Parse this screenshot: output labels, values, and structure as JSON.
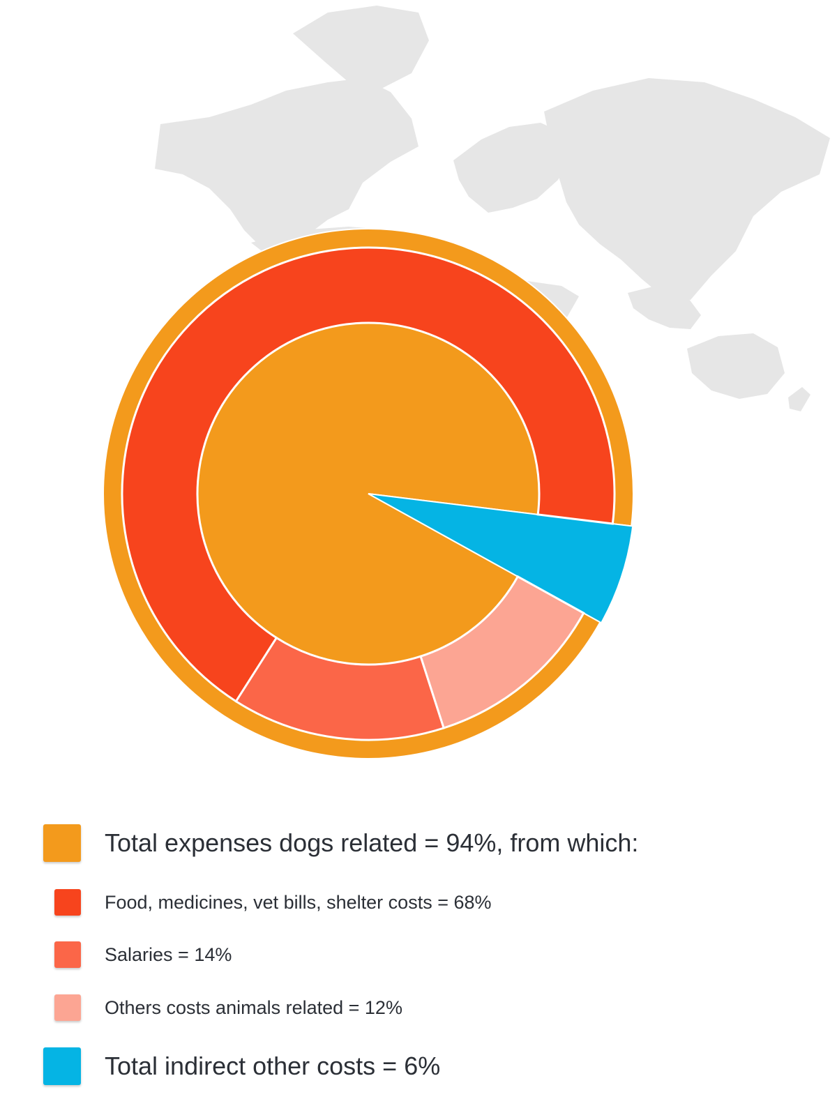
{
  "chart_data": {
    "type": "pie",
    "variant": "nested-donut",
    "outer_series": [
      {
        "label": "Total expenses dogs related",
        "value": 94,
        "color": "#F39A1C"
      },
      {
        "label": "Total indirect other costs",
        "value": 6,
        "color": "#05B4E4"
      }
    ],
    "inner_series": [
      {
        "label": "Food, medicines, vet bills, shelter costs",
        "value": 68,
        "color": "#F7441D"
      },
      {
        "label": "Salaries",
        "value": 14,
        "color": "#FB6648"
      },
      {
        "label": "Others costs animals related",
        "value": 12,
        "color": "#FCA593"
      }
    ],
    "center_color": "#F39A1C",
    "background": "world-map-silhouette",
    "map_color": "#E6E6E6"
  },
  "legend": [
    {
      "text": "Total expenses dogs related = 94%, from which:",
      "color": "#F39A1C",
      "level": "main"
    },
    {
      "text": "Food, medicines, vet bills, shelter costs = 68%",
      "color": "#F7441D",
      "level": "sub"
    },
    {
      "text": "Salaries = 14%",
      "color": "#FB6648",
      "level": "sub"
    },
    {
      "text": "Others costs animals related = 12%",
      "color": "#FCA593",
      "level": "sub"
    },
    {
      "text": "Total indirect other costs = 6%",
      "color": "#05B4E4",
      "level": "main"
    }
  ]
}
